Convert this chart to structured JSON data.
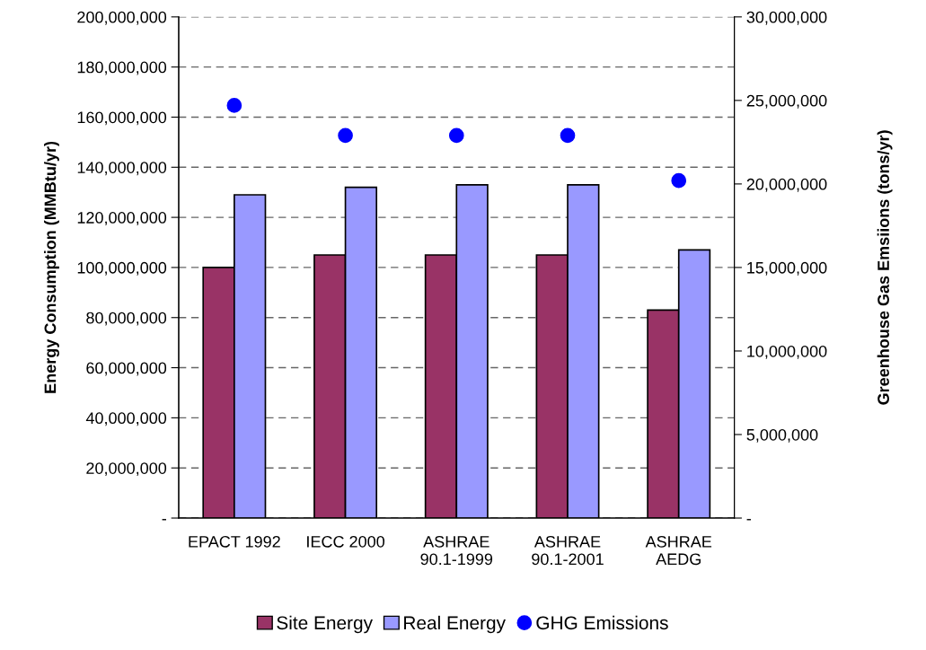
{
  "chart_data": {
    "type": "bar",
    "ylabel": "Energy Consumption (MMBtu/yr)",
    "y2label": "Greenhouse Gas Emsiions (tons/yr)",
    "categories": [
      "EPACT 1992",
      "IECC 2000",
      "ASHRAE\n90.1-1999",
      "ASHRAE\n90.1-2001",
      "ASHRAE\nAEDG"
    ],
    "series": [
      {
        "name": "Site Energy",
        "color": "#993366",
        "values": [
          100000000,
          105000000,
          105000000,
          105000000,
          83000000
        ]
      },
      {
        "name": "Real Energy",
        "color": "#9999ff",
        "values": [
          129000000,
          132000000,
          133000000,
          133000000,
          107000000
        ]
      },
      {
        "name": "GHG Emissions",
        "type": "scatter",
        "axis": "y2",
        "color": "#0000ff",
        "values": [
          24700000,
          22900000,
          22900000,
          22900000,
          20200000
        ]
      }
    ],
    "ylim": [
      0,
      200000000
    ],
    "yticks": [
      {
        "value": 0,
        "label": "-"
      },
      {
        "value": 20000000,
        "label": "20,000,000"
      },
      {
        "value": 40000000,
        "label": "40,000,000"
      },
      {
        "value": 60000000,
        "label": "60,000,000"
      },
      {
        "value": 80000000,
        "label": "80,000,000"
      },
      {
        "value": 100000000,
        "label": "100,000,000"
      },
      {
        "value": 120000000,
        "label": "120,000,000"
      },
      {
        "value": 140000000,
        "label": "140,000,000"
      },
      {
        "value": 160000000,
        "label": "160,000,000"
      },
      {
        "value": 180000000,
        "label": "180,000,000"
      },
      {
        "value": 200000000,
        "label": "200,000,000"
      }
    ],
    "y2lim": [
      0,
      30000000
    ],
    "y2ticks": [
      {
        "value": 0,
        "label": "-"
      },
      {
        "value": 5000000,
        "label": "5,000,000"
      },
      {
        "value": 10000000,
        "label": "10,000,000"
      },
      {
        "value": 15000000,
        "label": "15,000,000"
      },
      {
        "value": 20000000,
        "label": "20,000,000"
      },
      {
        "value": 25000000,
        "label": "25,000,000"
      },
      {
        "value": 30000000,
        "label": "30,000,000"
      }
    ],
    "grid": "y",
    "legend": "bottom",
    "marker": "circle"
  }
}
